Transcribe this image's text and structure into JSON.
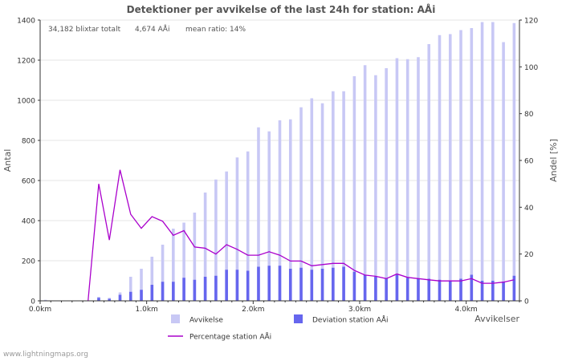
{
  "chart_data": {
    "type": "bar",
    "title": "Detektioner per avvikelse of the last 24h for station: AÅi",
    "stats": {
      "total": "34,182 blixtar totalt",
      "station": "4,674 AÅi",
      "ratio": "mean ratio: 14%"
    },
    "ylabel": "Antal",
    "y2label": "Andel [%]",
    "xlabel": "Avvikelser",
    "ylim": [
      0,
      1400
    ],
    "y2lim": [
      0,
      120
    ],
    "xlim": [
      0,
      4.5
    ],
    "yticks": [
      0,
      200,
      400,
      600,
      800,
      1000,
      1200,
      1400
    ],
    "y2ticks": [
      0,
      20,
      40,
      60,
      80,
      100,
      120
    ],
    "xticks": [
      {
        "value": 0,
        "label": "0.0km"
      },
      {
        "value": 1,
        "label": "1.0km"
      },
      {
        "value": 2,
        "label": "2.0km"
      },
      {
        "value": 3,
        "label": "3.0km"
      },
      {
        "value": 4,
        "label": "4.0km"
      }
    ],
    "x": [
      0.05,
      0.15,
      0.25,
      0.35,
      0.45,
      0.55,
      0.65,
      0.75,
      0.85,
      0.95,
      1.05,
      1.15,
      1.25,
      1.35,
      1.45,
      1.55,
      1.65,
      1.75,
      1.85,
      1.95,
      2.05,
      2.15,
      2.25,
      2.35,
      2.45,
      2.55,
      2.65,
      2.75,
      2.85,
      2.95,
      3.05,
      3.15,
      3.25,
      3.35,
      3.45,
      3.55,
      3.65,
      3.75,
      3.85,
      3.95,
      4.05,
      4.15,
      4.25,
      4.35,
      4.45
    ],
    "series": [
      {
        "name": "Avvikelse",
        "kind": "bar",
        "axis": "left",
        "color": "#c8c8f5",
        "values": [
          5,
          0,
          0,
          0,
          0,
          20,
          15,
          42,
          120,
          160,
          220,
          280,
          360,
          390,
          440,
          540,
          605,
          645,
          715,
          745,
          865,
          845,
          900,
          905,
          965,
          1010,
          985,
          1045,
          1045,
          1120,
          1175,
          1125,
          1160,
          1210,
          1205,
          1215,
          1280,
          1325,
          1330,
          1350,
          1360,
          1390,
          1390,
          1290,
          1385
        ]
      },
      {
        "name": "Deviation station AÅi",
        "kind": "bar",
        "axis": "left",
        "color": "#6666ee",
        "values": [
          0,
          0,
          0,
          0,
          0,
          15,
          10,
          30,
          45,
          55,
          80,
          95,
          95,
          115,
          105,
          120,
          125,
          155,
          155,
          150,
          170,
          175,
          175,
          160,
          165,
          155,
          160,
          165,
          170,
          145,
          130,
          120,
          110,
          130,
          115,
          110,
          110,
          105,
          100,
          110,
          130,
          100,
          100,
          95,
          125
        ]
      },
      {
        "name": "Percentage station AÅi",
        "kind": "line",
        "axis": "right",
        "color": "#aa00cc",
        "values": [
          null,
          null,
          null,
          null,
          0,
          50,
          26,
          56,
          37,
          31,
          36,
          34,
          28,
          30,
          23,
          22.5,
          20,
          24,
          22,
          19.5,
          19.5,
          21,
          19.5,
          17,
          17,
          15,
          15.5,
          16,
          16,
          13,
          11,
          10.5,
          9.5,
          11.5,
          10,
          9.5,
          9,
          8.5,
          8.5,
          8.5,
          9.5,
          7.5,
          7.5,
          8,
          9
        ]
      }
    ],
    "legend": {
      "items": [
        {
          "label": "Avvikelse",
          "symbol": "square",
          "color": "#c8c8f5"
        },
        {
          "label": "Deviation station AÅi",
          "symbol": "square",
          "color": "#6666ee"
        },
        {
          "label": "Percentage station AÅi",
          "symbol": "line",
          "color": "#aa00cc"
        }
      ]
    }
  },
  "footer": "www.lightningmaps.org"
}
